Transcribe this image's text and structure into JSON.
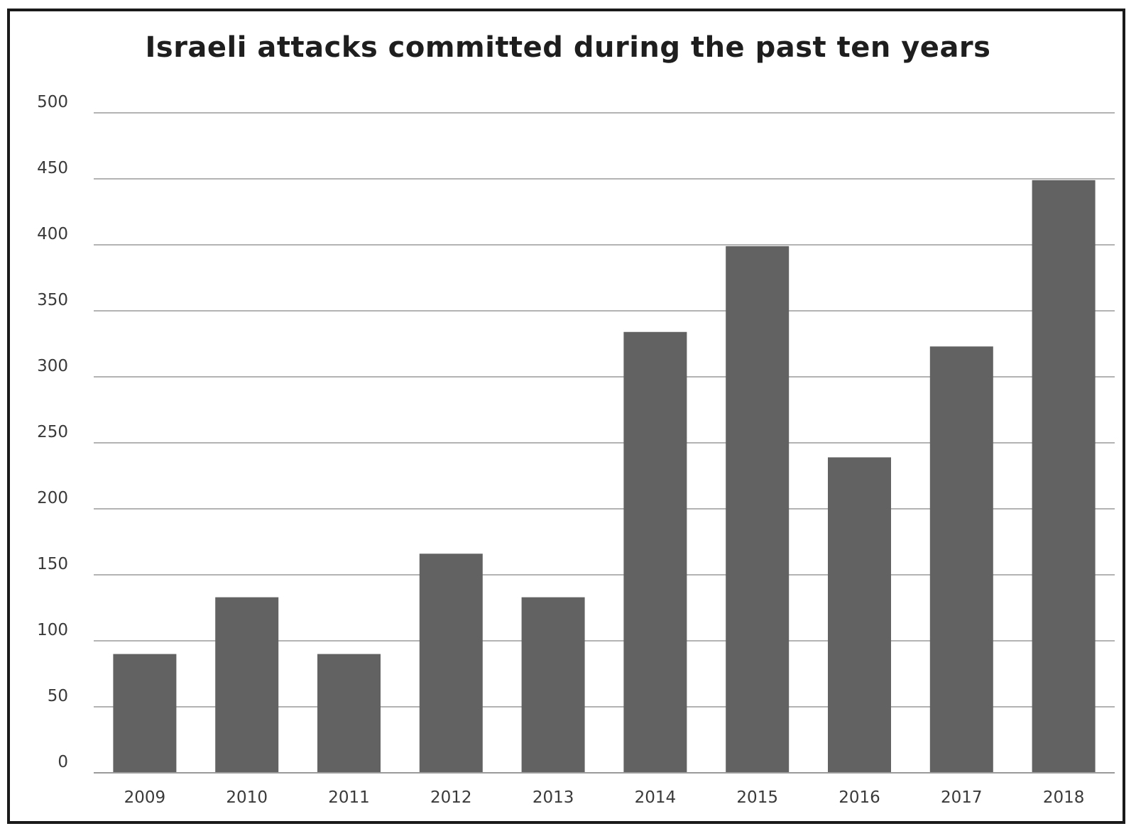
{
  "chart_data": {
    "type": "bar",
    "title": "Israeli attacks committed during the past ten years",
    "xlabel": "",
    "ylabel": "",
    "categories": [
      "2009",
      "2010",
      "2011",
      "2012",
      "2013",
      "2014",
      "2015",
      "2016",
      "2017",
      "2018"
    ],
    "values": [
      90,
      133,
      90,
      166,
      133,
      334,
      399,
      239,
      323,
      449
    ],
    "ylim": [
      0,
      500
    ],
    "yticks": [
      "0",
      "50",
      "100",
      "150",
      "200",
      "250",
      "300",
      "350",
      "400",
      "450",
      "500"
    ],
    "grid": true,
    "legend": "none",
    "colors": {
      "bar": "#626262",
      "grid": "#9a9a9a",
      "frame": "#1a1a1a"
    }
  }
}
